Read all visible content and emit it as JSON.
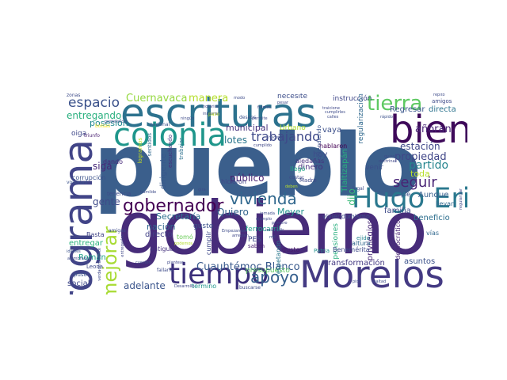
{
  "words": [
    {
      "text": "pueblo",
      "color": "#3b5f8c"
    },
    {
      "text": "gobierno",
      "color": "#472c7a"
    },
    {
      "text": "escrituras",
      "color": "#2c728e"
    },
    {
      "text": "Morelos",
      "color": "#443a83"
    },
    {
      "text": "programa",
      "color": "#414487"
    },
    {
      "text": "bien",
      "color": "#3e0a5a"
    },
    {
      "text": "Hugo Eric",
      "color": "#2a788e"
    },
    {
      "text": "colonia",
      "color": "#1f968b"
    },
    {
      "text": "tiempo",
      "color": "#3b2f7a"
    },
    {
      "text": "tierra",
      "color": "#5ec962"
    },
    {
      "text": "espacio",
      "color": "#3b528b"
    },
    {
      "text": "gobernador",
      "color": "#440154"
    },
    {
      "text": "vivienda",
      "color": "#31688e"
    },
    {
      "text": "mejorar",
      "color": "#a8db34"
    },
    {
      "text": "apoyo",
      "color": "#355f8d"
    },
    {
      "text": "seguir",
      "color": "#482475"
    },
    {
      "text": "trabajando",
      "color": "#3e4989"
    },
    {
      "text": "Cuernavaca",
      "color": "#95d840"
    },
    {
      "text": "manera",
      "color": "#b5de2b"
    },
    {
      "text": "partido",
      "color": "#25858e"
    },
    {
      "text": "añoran",
      "color": "#482576"
    },
    {
      "text": "propiedad",
      "color": "#404688"
    },
    {
      "text": "estación",
      "color": "#3f4788"
    },
    {
      "text": "toda",
      "color": "#b8de29"
    },
    {
      "text": "Cuauhtémoc Blanco",
      "color": "#38598c"
    },
    {
      "text": "entregando",
      "color": "#2ab07f"
    },
    {
      "text": "posesión",
      "color": "#23898e"
    },
    {
      "text": "lotes",
      "color": "#2a768e"
    },
    {
      "text": "municipal",
      "color": "#46337e"
    },
    {
      "text": "siga",
      "color": "#482878"
    },
    {
      "text": "gente",
      "color": "#3e4a89"
    },
    {
      "text": "Quiero",
      "color": "#33638d"
    },
    {
      "text": "Meyer",
      "color": "#21918c"
    },
    {
      "text": "Secretaría",
      "color": "#2d708e"
    },
    {
      "text": "nación",
      "color": "#31678e"
    },
    {
      "text": "directo",
      "color": "#424186"
    },
    {
      "text": "público",
      "color": "#481f70"
    },
    {
      "text": "hoy",
      "color": "#3e4c8a"
    },
    {
      "text": "dinero",
      "color": "#472f7d"
    },
    {
      "text": "vaya",
      "color": "#3c4f8a"
    },
    {
      "text": "adelante",
      "color": "#3a548c"
    },
    {
      "text": "social",
      "color": "#3f4889"
    },
    {
      "text": "Román",
      "color": "#1fa088"
    },
    {
      "text": "transformación",
      "color": "#443983"
    },
    {
      "text": "asuntos",
      "color": "#3b518b"
    },
    {
      "text": "beneficio",
      "color": "#2e6f8e"
    },
    {
      "text": "Aunque",
      "color": "#355e8d"
    },
    {
      "text": "familia",
      "color": "#3e4a89"
    },
    {
      "text": "mismo",
      "color": "#3b528b"
    },
    {
      "text": "entregar",
      "color": "#2db27d"
    },
    {
      "text": "dijo",
      "color": "#38b977"
    },
    {
      "text": "instrucción",
      "color": "#3f4788"
    },
    {
      "text": "Regresar",
      "color": "#39568c"
    },
    {
      "text": "directa",
      "color": "#2c738e"
    },
    {
      "text": "necesite",
      "color": "#3d4e8a"
    },
    {
      "text": "Urbano",
      "color": "#addc30"
    },
    {
      "text": "hablaron",
      "color": "#440154"
    },
    {
      "text": "aledañas",
      "color": "#46327e"
    },
    {
      "text": "llegó",
      "color": "#21a585"
    },
    {
      "text": "ferrocarril",
      "color": "#1f9e89"
    },
    {
      "text": "guste",
      "color": "#3b528b"
    },
    {
      "text": "PES",
      "color": "#3e4989"
    },
    {
      "text": "tomó",
      "color": "#6ccd5a"
    },
    {
      "text": "antiguas",
      "color": "#46337e"
    },
    {
      "text": "gusto",
      "color": "#48196b"
    },
    {
      "text": "corrupción",
      "color": "#3b528b"
    },
    {
      "text": "oiga",
      "color": "#3f4889"
    },
    {
      "text": "dando",
      "color": "#472a7a"
    },
    {
      "text": "Basta",
      "color": "#414487"
    },
    {
      "text": "privilegios",
      "color": "#482878"
    },
    {
      "text": "Tlaltizapán",
      "color": "#29af7f"
    },
    {
      "text": "regularización",
      "color": "#30698e"
    },
    {
      "text": "dirigente",
      "color": "#38588c"
    },
    {
      "text": "pensiones",
      "color": "#29af7f"
    },
    {
      "text": "venir",
      "color": "#3c4f8a"
    },
    {
      "text": "presupuesto",
      "color": "#5ec962"
    },
    {
      "text": "ejido",
      "color": "#25848e"
    },
    {
      "text": "viviendo",
      "color": "#3e4c8a"
    },
    {
      "text": "pie",
      "color": "#3b528b"
    },
    {
      "text": "llevan",
      "color": "#31688e"
    },
    {
      "text": "vías",
      "color": "#31688e"
    },
    {
      "text": "Benemérita",
      "color": "#3e4a89"
    },
    {
      "text": "Patria",
      "color": "#21918c"
    },
    {
      "text": "altura",
      "color": "#31688e"
    },
    {
      "text": "Madre",
      "color": "#3e4a89"
    },
    {
      "text": "termino",
      "color": "#1f968b"
    },
    {
      "text": "entendiendo",
      "color": "#3b528b"
    },
    {
      "text": "democrático",
      "color": "#482475"
    },
    {
      "text": "legal",
      "color": "#3e4c8a"
    },
    {
      "text": "cumplir",
      "color": "#3e4989"
    },
    {
      "text": "respetando",
      "color": "#2a788e"
    },
    {
      "text": "hicieron",
      "color": "#404688"
    },
    {
      "text": "tenencia",
      "color": "#3e4c8a"
    },
    {
      "text": "logramos",
      "color": "#c2df23"
    },
    {
      "text": "escuchando",
      "color": "#46327e"
    },
    {
      "text": "sentidos",
      "color": "#31688e"
    },
    {
      "text": "trabajar",
      "color": "#2d708e"
    },
    {
      "text": "saben",
      "color": "#481f70"
    },
    {
      "text": "puso",
      "color": "#3b528b"
    },
    {
      "text": "Leona",
      "color": "#3e4989"
    },
    {
      "text": "amigos",
      "color": "#3e4a89"
    },
    {
      "text": "zonas",
      "color": "#3e4c8a"
    },
    {
      "text": "triunfo",
      "color": "#481f70"
    },
    {
      "text": "preferencia",
      "color": "#3e4c8a"
    },
    {
      "text": "nacional",
      "color": "#3b528b"
    },
    {
      "text": "iniciaran",
      "color": "#3e4c8a"
    },
    {
      "text": "notarios",
      "color": "#3f4788"
    },
    {
      "text": "buscarse",
      "color": "#3e4c8a"
    },
    {
      "text": "Desarrollo",
      "color": "#3f4788"
    },
    {
      "text": "fallarle",
      "color": "#3e4c8a"
    },
    {
      "text": "ideales",
      "color": "#3b528b"
    },
    {
      "text": "alumbrado",
      "color": "#3e4c8a"
    },
    {
      "text": "verdaderamente",
      "color": "#3e4989"
    },
    {
      "text": "entregarles",
      "color": "#3f4788"
    },
    {
      "text": "cuesten",
      "color": "#3e4c8a"
    },
    {
      "text": "plantean",
      "color": "#3f4788"
    },
    {
      "text": "podemos",
      "color": "#b5de2b"
    },
    {
      "text": "humilde",
      "color": "#3e4c8a"
    },
    {
      "text": "voluntad",
      "color": "#3b528b"
    },
    {
      "text": "amigas",
      "color": "#3e4c8a"
    },
    {
      "text": "bolsas",
      "color": "#fde725"
    },
    {
      "text": "ningún",
      "color": "#3e4c8a"
    },
    {
      "text": "fuimos",
      "color": "#3f4788"
    },
    {
      "text": "paso",
      "color": "#b8de29"
    },
    {
      "text": "permite",
      "color": "#3e4c8a"
    },
    {
      "text": "deseos",
      "color": "#3b528b"
    },
    {
      "text": "cumplido",
      "color": "#3f4788"
    },
    {
      "text": "hacerlo",
      "color": "#3e4c8a"
    },
    {
      "text": "costar",
      "color": "#3e4c8a"
    },
    {
      "text": "deben",
      "color": "#b8de29"
    },
    {
      "text": "Empezamos",
      "color": "#3e4c8a"
    },
    {
      "text": "arreglen",
      "color": "#3f4788"
    },
    {
      "text": "mil",
      "color": "#3b528b"
    },
    {
      "text": "ejemplo",
      "color": "#3e4c8a"
    },
    {
      "text": "jornada",
      "color": "#3e4c8a"
    },
    {
      "text": "primero",
      "color": "#3f4788"
    },
    {
      "text": "incumplir",
      "color": "#3e4c8a"
    },
    {
      "text": "quise",
      "color": "#3e4c8a"
    },
    {
      "text": "doctrina",
      "color": "#3f4788"
    },
    {
      "text": "lealtad",
      "color": "#3e4c8a"
    },
    {
      "text": "pido",
      "color": "#3e4c8a"
    },
    {
      "text": "rápido",
      "color": "#3b528b"
    },
    {
      "text": "repito",
      "color": "#3e4c8a"
    },
    {
      "text": "traicione",
      "color": "#3f4788"
    },
    {
      "text": "cumplirles",
      "color": "#3e4c8a"
    },
    {
      "text": "calles",
      "color": "#3e4c8a"
    },
    {
      "text": "modo",
      "color": "#3e4c8a"
    },
    {
      "text": "pesar",
      "color": "#3e4c8a"
    },
    {
      "text": "regularizar",
      "color": "#3f4788"
    },
    {
      "text": "gira",
      "color": "#3e4c8a"
    }
  ]
}
